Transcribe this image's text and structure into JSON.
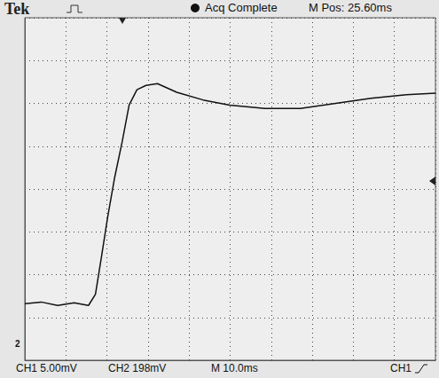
{
  "chart_data": {
    "type": "line",
    "title": "Tek",
    "annotations": [
      "Acq Complete",
      "M Pos: 25.60ms",
      "CH1 5.00mV",
      "CH2 198mV",
      "M 10.0ms",
      "CH1",
      "2"
    ],
    "x": [
      0,
      4,
      8,
      12,
      15.5,
      17.2,
      18.7,
      20.2,
      21.9,
      23.7,
      25.4,
      27.3,
      29.5,
      32.3,
      37.0,
      43.4,
      49.9,
      58.5,
      67.1,
      75.7,
      84.3,
      92.9,
      100
    ],
    "values": [
      -13.4,
      -13.2,
      -13.6,
      -13.3,
      -13.6,
      -12.3,
      -7.8,
      -3.2,
      1.4,
      5.5,
      9.8,
      11.6,
      12.1,
      12.3,
      11.3,
      10.4,
      9.8,
      9.4,
      9.4,
      10.0,
      10.6,
      11.0,
      11.2
    ],
    "color": "#111111",
    "xlim": [
      0,
      100
    ],
    "xticks": [
      0,
      10,
      20,
      30,
      40,
      50,
      60,
      70,
      80,
      90,
      100
    ],
    "ylim": [
      -20,
      20
    ],
    "yticks": [
      -20,
      -15,
      -10,
      -5,
      0,
      5,
      10,
      15,
      20
    ],
    "grid": true,
    "tick_labels": false
  }
}
